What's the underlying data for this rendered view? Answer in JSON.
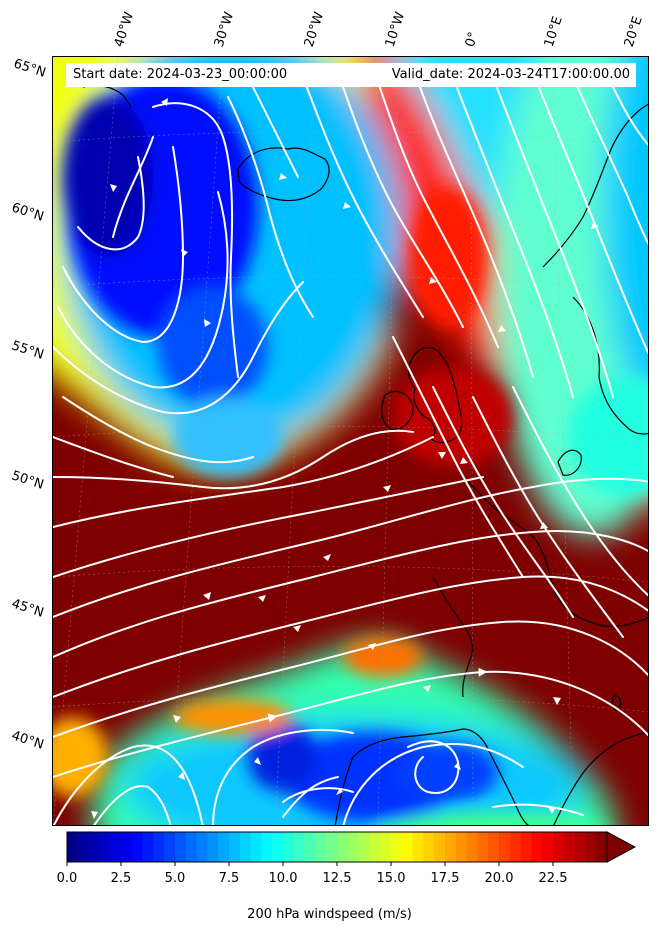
{
  "header": {
    "start_date": "Start date: 2024-03-23_00:00:00",
    "valid_date": "Valid_date: 2024-03-24T17:00:00.00"
  },
  "map": {
    "longitude_labels": [
      "40°W",
      "30°W",
      "20°W",
      "10°W",
      "0°",
      "10°E",
      "20°E"
    ],
    "latitude_labels": [
      "65°N",
      "60°N",
      "55°N",
      "50°N",
      "45°N",
      "40°N"
    ],
    "field": "200 hPa windspeed",
    "units": "m/s",
    "colormap": "jet",
    "value_range": [
      0,
      25
    ],
    "overlay": "white streamlines with arrowheads",
    "coastlines": "black",
    "graticule": "dashed grey"
  },
  "colorbar": {
    "ticks": [
      "0.0",
      "2.5",
      "5.0",
      "7.5",
      "10.0",
      "12.5",
      "15.0",
      "17.5",
      "20.0",
      "22.5"
    ],
    "label": "200 hPa windspeed (m/s)",
    "extend": "max"
  },
  "colors": {
    "jet_stops": [
      "#00007f",
      "#0000ff",
      "#007fff",
      "#00ffff",
      "#7fff7f",
      "#ffff00",
      "#ff7f00",
      "#ff0000",
      "#7f0000"
    ],
    "streamline": "#ffffff",
    "coastline": "#000000"
  }
}
